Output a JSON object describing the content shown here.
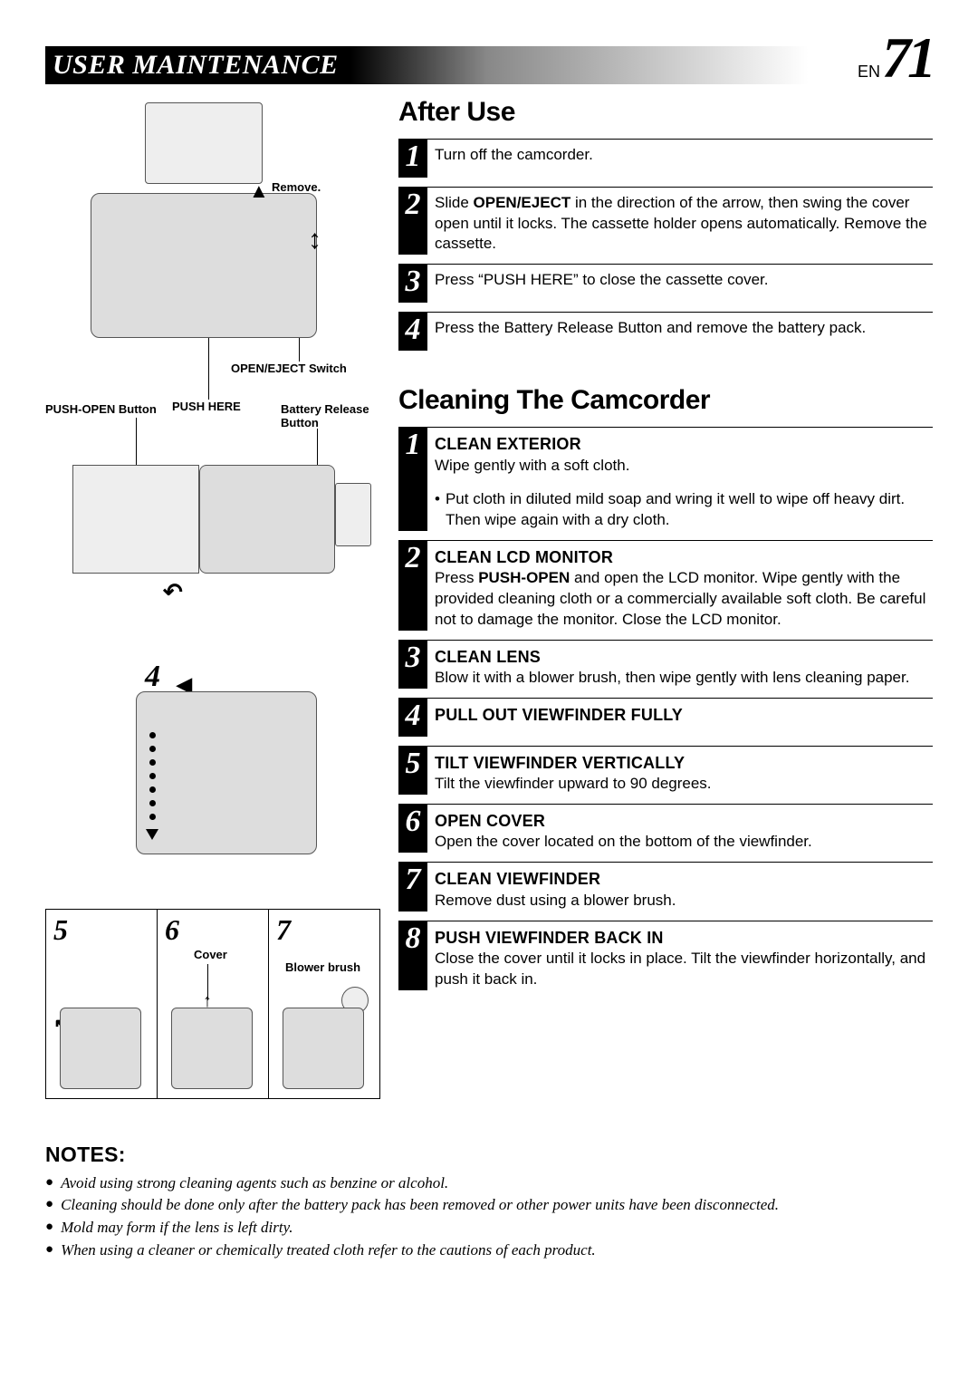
{
  "header": {
    "title": "USER MAINTENANCE",
    "page_lang": "EN",
    "page_number": "71"
  },
  "diagrams": {
    "d1": {
      "remove": "Remove.",
      "open_eject": "OPEN/EJECT Switch",
      "push_here": "PUSH HERE"
    },
    "d2": {
      "push_open": "PUSH-OPEN Button",
      "batt_release": "Battery Release Button"
    },
    "d3": {
      "num": "4"
    },
    "d4": {
      "n5": "5",
      "n6": "6",
      "n7": "7",
      "cover": "Cover",
      "blower": "Blower brush"
    }
  },
  "after_use": {
    "title": "After Use",
    "steps": [
      {
        "n": "1",
        "text": "Turn off  the camcorder."
      },
      {
        "n": "2",
        "text_pre": "Slide ",
        "bold": "OPEN/EJECT",
        "text_post": " in the direction of the arrow, then swing the cover open until it locks. The cassette holder opens automatically. Remove the cassette."
      },
      {
        "n": "3",
        "text": "Press “PUSH HERE” to close the cassette cover."
      },
      {
        "n": "4",
        "text": "Press the Battery Release Button and remove the battery pack."
      }
    ]
  },
  "cleaning": {
    "title": "Cleaning The Camcorder",
    "steps": [
      {
        "n": "1",
        "title": "CLEAN EXTERIOR",
        "text": "Wipe gently with a soft cloth.",
        "bullet": "Put cloth in diluted mild soap and wring it well to wipe off heavy dirt. Then wipe again with a dry cloth."
      },
      {
        "n": "2",
        "title": "CLEAN LCD MONITOR",
        "text_pre": "Press ",
        "bold": "PUSH-OPEN",
        "text_post": " and open the LCD monitor. Wipe gently with the provided cleaning cloth or a commercially available soft cloth. Be careful not to damage the monitor. Close the LCD monitor."
      },
      {
        "n": "3",
        "title": "CLEAN LENS",
        "text": "Blow it with a blower brush, then wipe gently with lens cleaning paper."
      },
      {
        "n": "4",
        "title": "PULL OUT VIEWFINDER FULLY"
      },
      {
        "n": "5",
        "title": "TILT VIEWFINDER VERTICALLY",
        "text": "Tilt the viewfinder upward to 90 degrees."
      },
      {
        "n": "6",
        "title": "OPEN COVER",
        "text": "Open the cover located on the bottom of the viewfinder."
      },
      {
        "n": "7",
        "title": "CLEAN VIEWFINDER",
        "text": "Remove dust using a blower brush."
      },
      {
        "n": "8",
        "title": "PUSH VIEWFINDER BACK IN",
        "text": "Close the cover until it locks in place. Tilt the viewfinder horizontally, and push it back in."
      }
    ]
  },
  "notes": {
    "title": "NOTES:",
    "items": [
      "Avoid using strong cleaning agents such as benzine or alcohol.",
      "Cleaning should be done only after the battery pack has been removed or other power units have been disconnected.",
      "Mold may form if the lens is left dirty.",
      "When using a cleaner or chemically treated cloth refer to the cautions of each product."
    ]
  }
}
